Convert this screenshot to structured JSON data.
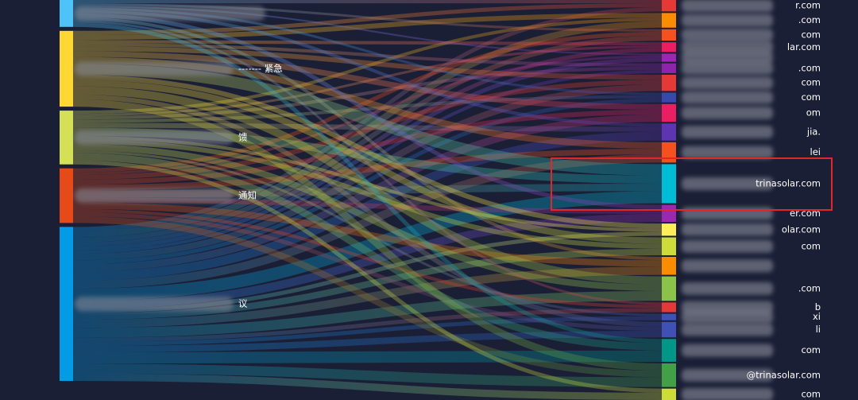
{
  "chart_data": {
    "type": "sankey",
    "sources": [
      {
        "color": "#4fc3f7"
      },
      {
        "name": "------- 紧急",
        "color": "#fdd835"
      },
      {
        "name": "馈",
        "color": "#d4e157"
      },
      {
        "name": "通知",
        "color": "#e64a19"
      },
      {
        "name": "议",
        "color": "#039be5"
      }
    ],
    "targets": [
      {
        "name": "r.com",
        "color": "#e53935"
      },
      {
        "name": ".com",
        "color": "#fb8c00"
      },
      {
        "name": "com",
        "color": "#f4511e"
      },
      {
        "name": "lar.com",
        "color": "#e91e63"
      },
      {
        "color": "#9c27b0"
      },
      {
        "name": ".com",
        "color": "#8e24aa"
      },
      {
        "name": "com",
        "color": "#e53935"
      },
      {
        "name": "com",
        "color": "#3949ab"
      },
      {
        "name": "om",
        "color": "#e91e63"
      },
      {
        "name": "jia.",
        "color": "#5e35b1"
      },
      {
        "name": "lei",
        "color": "#f4511e"
      },
      {
        "name": "trinasolar.com",
        "color": "#00bcd4"
      },
      {
        "name": "er.com",
        "color": "#9c27b0"
      },
      {
        "name": "olar.com",
        "color": "#ffee58"
      },
      {
        "name": "com",
        "color": "#cddc39"
      },
      {
        "color": "#fb8c00"
      },
      {
        "name": ".com",
        "color": "#8bc34a"
      },
      {
        "name": "b",
        "color": "#e53935"
      },
      {
        "name": "xi",
        "color": "#3f51b5"
      },
      {
        "name": "li",
        "color": "#3f51b5"
      },
      {
        "name": "com",
        "color": "#009688"
      },
      {
        "name": "@trinasolar.com",
        "color": "#43a047"
      },
      {
        "name": "com",
        "color": "#cddc39"
      }
    ],
    "links": [
      [
        0,
        0,
        4
      ],
      [
        1,
        0,
        5
      ],
      [
        4,
        0,
        5
      ],
      [
        1,
        1,
        6
      ],
      [
        2,
        1,
        4
      ],
      [
        4,
        1,
        8
      ],
      [
        0,
        2,
        3
      ],
      [
        3,
        2,
        5
      ],
      [
        4,
        2,
        6
      ],
      [
        1,
        3,
        4
      ],
      [
        2,
        3,
        3
      ],
      [
        4,
        3,
        5
      ],
      [
        0,
        4,
        2
      ],
      [
        3,
        4,
        3
      ],
      [
        4,
        4,
        5
      ],
      [
        1,
        5,
        4
      ],
      [
        2,
        5,
        4
      ],
      [
        4,
        5,
        4
      ],
      [
        1,
        6,
        6
      ],
      [
        3,
        6,
        6
      ],
      [
        4,
        6,
        8
      ],
      [
        0,
        7,
        3
      ],
      [
        2,
        7,
        4
      ],
      [
        4,
        7,
        5
      ],
      [
        1,
        8,
        7
      ],
      [
        3,
        8,
        6
      ],
      [
        4,
        8,
        9
      ],
      [
        0,
        9,
        4
      ],
      [
        2,
        9,
        6
      ],
      [
        4,
        9,
        11
      ],
      [
        1,
        10,
        8
      ],
      [
        3,
        10,
        7
      ],
      [
        4,
        10,
        10
      ],
      [
        1,
        11,
        14
      ],
      [
        2,
        11,
        10
      ],
      [
        3,
        11,
        9
      ],
      [
        4,
        11,
        15
      ],
      [
        0,
        12,
        5
      ],
      [
        3,
        12,
        6
      ],
      [
        4,
        12,
        10
      ],
      [
        1,
        13,
        6
      ],
      [
        2,
        13,
        4
      ],
      [
        4,
        13,
        5
      ],
      [
        1,
        14,
        8
      ],
      [
        2,
        14,
        6
      ],
      [
        4,
        14,
        8
      ],
      [
        0,
        15,
        4
      ],
      [
        3,
        15,
        8
      ],
      [
        4,
        15,
        10
      ],
      [
        1,
        16,
        10
      ],
      [
        2,
        16,
        8
      ],
      [
        4,
        16,
        12
      ],
      [
        0,
        17,
        3
      ],
      [
        3,
        17,
        4
      ],
      [
        4,
        17,
        5
      ],
      [
        2,
        18,
        3
      ],
      [
        4,
        18,
        5
      ],
      [
        1,
        19,
        6
      ],
      [
        3,
        19,
        5
      ],
      [
        4,
        19,
        8
      ],
      [
        0,
        20,
        5
      ],
      [
        2,
        20,
        9
      ],
      [
        4,
        20,
        14
      ],
      [
        1,
        21,
        9
      ],
      [
        3,
        21,
        8
      ],
      [
        4,
        21,
        12
      ],
      [
        2,
        22,
        5
      ],
      [
        4,
        22,
        9
      ]
    ]
  }
}
